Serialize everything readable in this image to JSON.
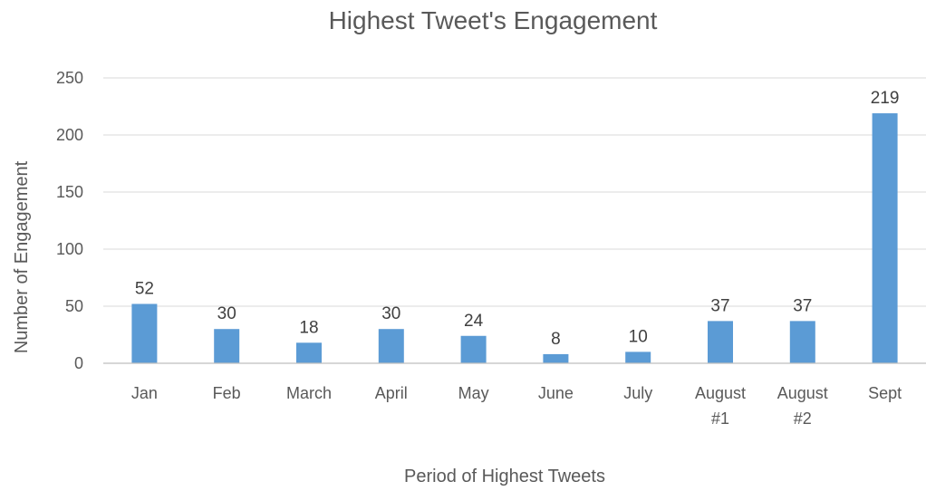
{
  "chart_data": {
    "type": "bar",
    "title": "Highest Tweet's Engagement",
    "xlabel": "Period of Highest Tweets",
    "ylabel": "Number  of Engagement",
    "categories": [
      [
        "Jan"
      ],
      [
        "Feb"
      ],
      [
        "March"
      ],
      [
        "April"
      ],
      [
        "May"
      ],
      [
        "June"
      ],
      [
        "July"
      ],
      [
        "August",
        "#1"
      ],
      [
        "August",
        "#2"
      ],
      [
        "Sept"
      ]
    ],
    "values": [
      52,
      30,
      18,
      30,
      24,
      8,
      10,
      37,
      37,
      219
    ],
    "ylim": [
      0,
      250
    ],
    "yticks": [
      0,
      50,
      100,
      150,
      200,
      250
    ],
    "grid": true,
    "legend": "none",
    "data_labels": true,
    "bar_color": "#5b9bd5"
  }
}
